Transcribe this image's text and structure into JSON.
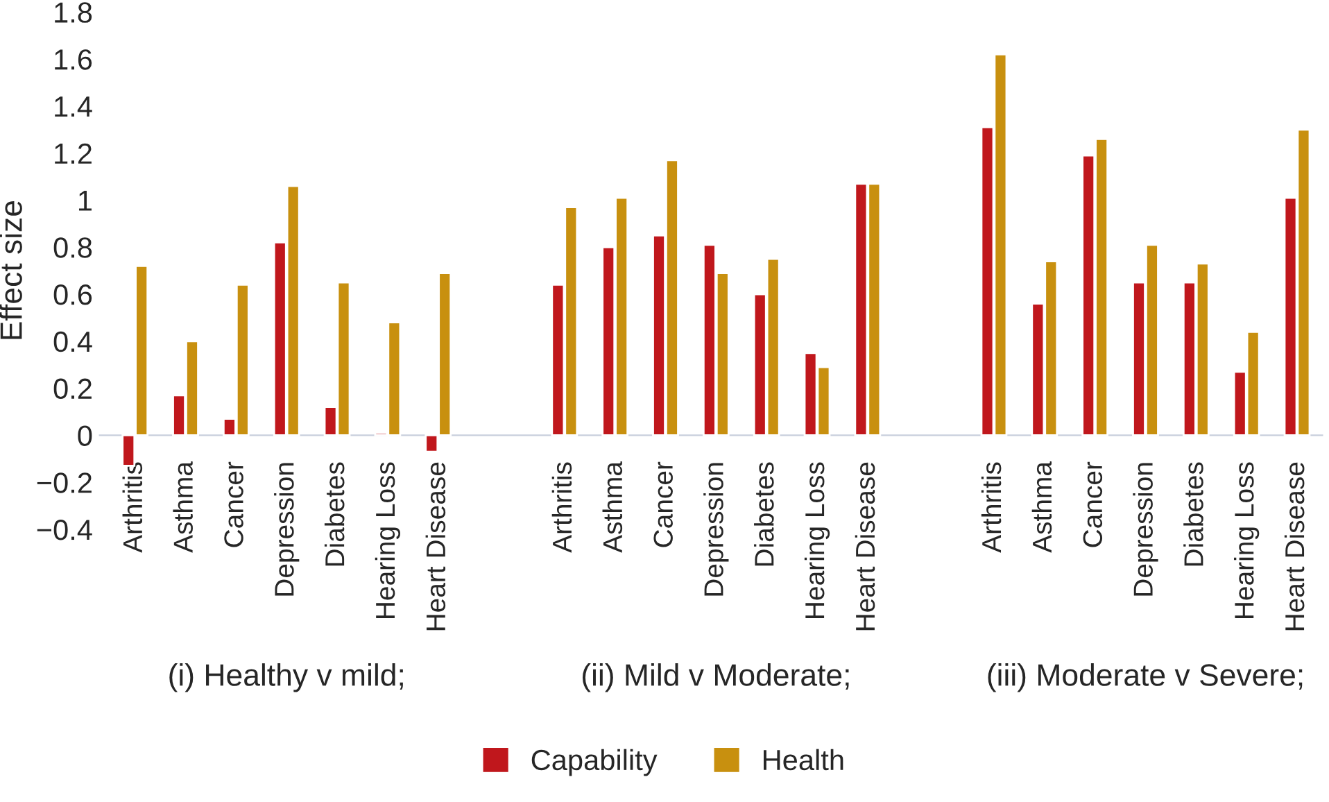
{
  "chart_data": {
    "type": "bar",
    "ylabel": "Effect size",
    "categories": [
      "Arthritis",
      "Asthma",
      "Cancer",
      "Depression",
      "Diabetes",
      "Hearing Loss",
      "Heart Disease",
      "Arthritis",
      "Asthma",
      "Cancer",
      "Depression",
      "Diabetes",
      "Hearing Loss",
      "Heart Disease",
      "Arthritis",
      "Asthma",
      "Cancer",
      "Depression",
      "Diabetes",
      "Hearing Loss",
      "Heart Disease"
    ],
    "series": [
      {
        "name": "Capability",
        "color": "#c0171c",
        "values": [
          -0.13,
          0.17,
          0.07,
          0.82,
          0.12,
          0.01,
          -0.07,
          0.64,
          0.8,
          0.85,
          0.81,
          0.6,
          0.35,
          1.07,
          1.31,
          0.56,
          1.19,
          0.65,
          0.65,
          0.27,
          1.01
        ]
      },
      {
        "name": "Health",
        "color": "#c8900f",
        "values": [
          0.72,
          0.4,
          0.64,
          1.06,
          0.65,
          0.48,
          0.69,
          0.97,
          1.01,
          1.17,
          0.69,
          0.75,
          0.29,
          1.07,
          1.62,
          0.74,
          1.26,
          0.81,
          0.73,
          0.44,
          1.3
        ]
      }
    ],
    "annotations": [
      "(i) Healthy v mild;",
      "(ii) Mild v Moderate;",
      "(iii) Moderate v Severe;"
    ],
    "ylim": [
      -0.4,
      1.8
    ],
    "yticks": [
      {
        "value": -0.4,
        "label": "−0.4"
      },
      {
        "value": -0.2,
        "label": "−0.2"
      },
      0,
      0.2,
      0.4,
      0.6,
      0.8,
      1,
      1.2,
      1.4,
      1.6,
      1.8
    ],
    "grid": false,
    "legend": "bottom"
  }
}
